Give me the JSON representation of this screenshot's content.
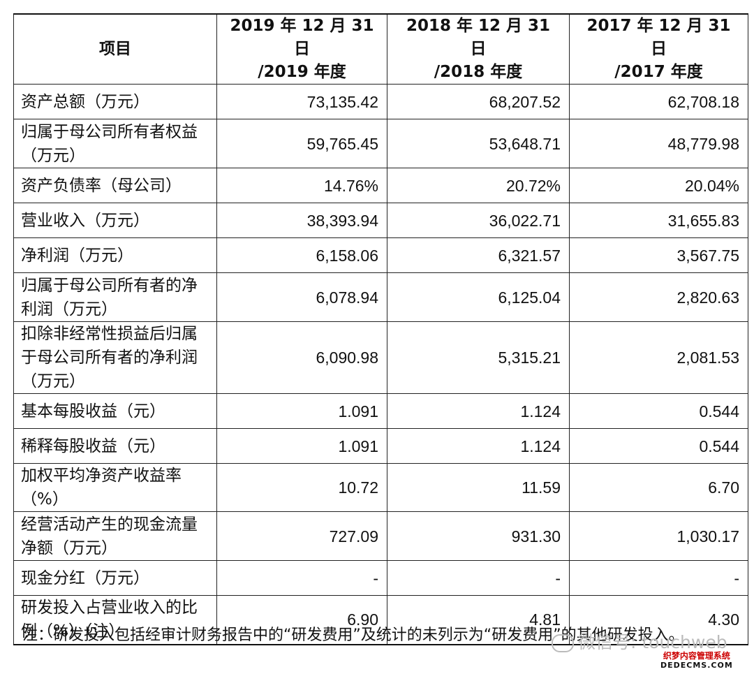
{
  "table": {
    "headers": [
      "项目",
      "2019 年 12 月 31 日\n/2019 年度",
      "2018 年 12 月 31 日\n/2018 年度",
      "2017 年 12 月 31 日\n/2017 年度"
    ],
    "rows": [
      {
        "label": "资产总额（万元）",
        "values": [
          "73,135.42",
          "68,207.52",
          "62,708.18"
        ],
        "h": 50
      },
      {
        "label": "归属于母公司所有者权益（万元）",
        "values": [
          "59,765.45",
          "53,648.71",
          "48,779.98"
        ],
        "h": 70
      },
      {
        "label": "资产负债率（母公司）",
        "values": [
          "14.76%",
          "20.72%",
          "20.04%"
        ],
        "h": 50
      },
      {
        "label": "营业收入（万元）",
        "values": [
          "38,393.94",
          "36,022.71",
          "31,655.83"
        ],
        "h": 50
      },
      {
        "label": "净利润（万元）",
        "values": [
          "6,158.06",
          "6,321.57",
          "3,567.75"
        ],
        "h": 50
      },
      {
        "label": "归属于母公司所有者的净利润（万元）",
        "values": [
          "6,078.94",
          "6,125.04",
          "2,820.63"
        ],
        "h": 70
      },
      {
        "label": "扣除非经常性损益后归属于母公司所有者的净利润（万元）",
        "values": [
          "6,090.98",
          "5,315.21",
          "2,081.53"
        ],
        "h": 102
      },
      {
        "label": "基本每股收益（元）",
        "values": [
          "1.091",
          "1.124",
          "0.544"
        ],
        "h": 50
      },
      {
        "label": "稀释每股收益（元）",
        "values": [
          "1.091",
          "1.124",
          "0.544"
        ],
        "h": 50
      },
      {
        "label": "加权平均净资产收益率（%）",
        "values": [
          "10.72",
          "11.59",
          "6.70"
        ],
        "h": 68
      },
      {
        "label": "经营活动产生的现金流量净额（万元）",
        "values": [
          "727.09",
          "931.30",
          "1,030.17"
        ],
        "h": 70
      },
      {
        "label": "现金分红（万元）",
        "values": [
          "-",
          "-",
          "-"
        ],
        "h": 50
      },
      {
        "label": "研发投入占营业收入的比例（%）（注）",
        "values": [
          "6.90",
          "4.81",
          "4.30"
        ],
        "h": 70
      }
    ]
  },
  "note": "注：研发投入包括经审计财务报告中的“研发费用”及统计的未列示为“研发费用”的其他研发投入。",
  "watermark": "微信号: touchweb",
  "watermark2": {
    "line1": "织梦内容管理系统",
    "line2": "DEDECMS.COM"
  }
}
